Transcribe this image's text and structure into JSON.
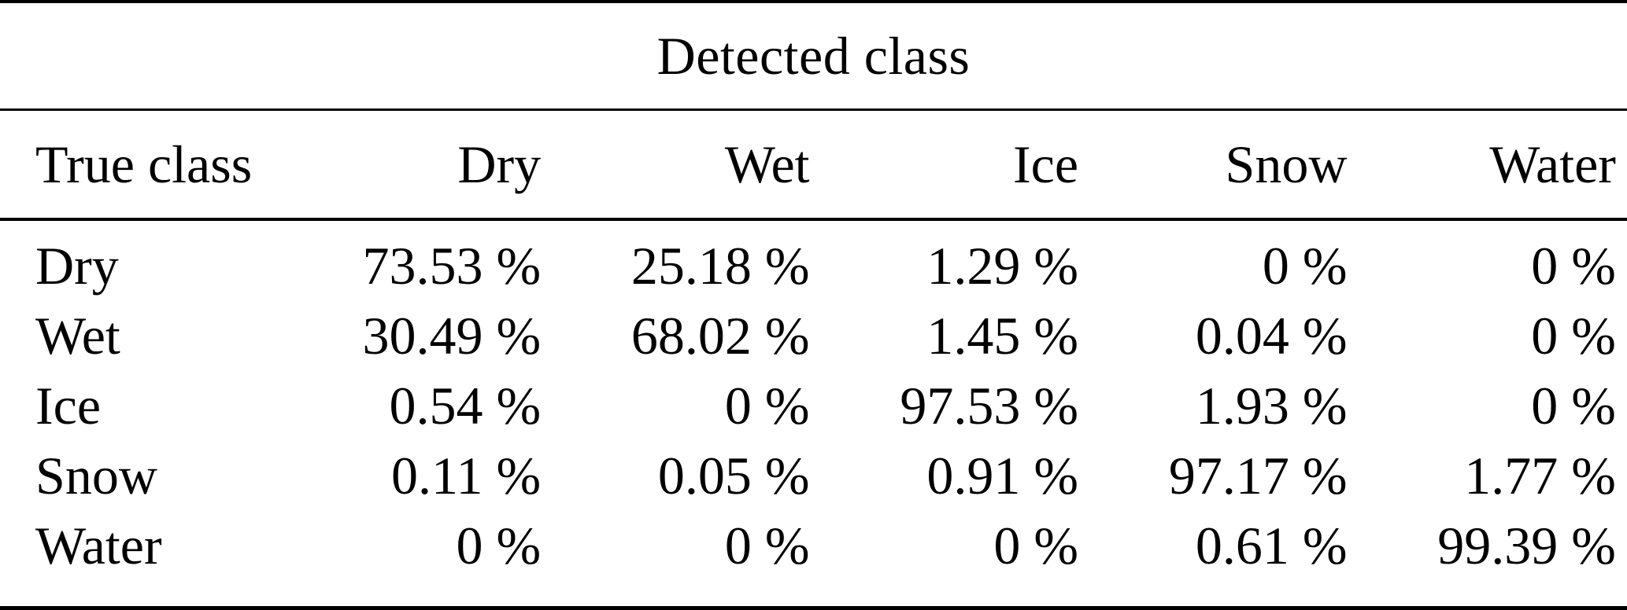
{
  "title": "Detected class",
  "header": {
    "corner": "True class",
    "columns": [
      "Dry",
      "Wet",
      "Ice",
      "Snow",
      "Water"
    ]
  },
  "rows": [
    {
      "label": "Dry",
      "values": [
        "73.53 %",
        "25.18 %",
        "1.29 %",
        "0 %",
        "0 %"
      ]
    },
    {
      "label": "Wet",
      "values": [
        "30.49 %",
        "68.02 %",
        "1.45 %",
        "0.04 %",
        "0 %"
      ]
    },
    {
      "label": "Ice",
      "values": [
        "0.54 %",
        "0 %",
        "97.53 %",
        "1.93 %",
        "0 %"
      ]
    },
    {
      "label": "Snow",
      "values": [
        "0.11 %",
        "0.05 %",
        "0.91 %",
        "97.17 %",
        "1.77 %"
      ]
    },
    {
      "label": "Water",
      "values": [
        "0 %",
        "0 %",
        "0 %",
        "0.61 %",
        "99.39 %"
      ]
    }
  ],
  "chart_data": {
    "type": "table",
    "title": "Detected class",
    "row_axis_label": "True class",
    "categories": [
      "Dry",
      "Wet",
      "Ice",
      "Snow",
      "Water"
    ],
    "series": [
      {
        "name": "Dry",
        "values": [
          73.53,
          25.18,
          1.29,
          0,
          0
        ]
      },
      {
        "name": "Wet",
        "values": [
          30.49,
          68.02,
          1.45,
          0.04,
          0
        ]
      },
      {
        "name": "Ice",
        "values": [
          0.54,
          0,
          97.53,
          1.93,
          0
        ]
      },
      {
        "name": "Snow",
        "values": [
          0.11,
          0.05,
          0.91,
          97.17,
          1.77
        ]
      },
      {
        "name": "Water",
        "values": [
          0,
          0,
          0,
          0.61,
          99.39
        ]
      }
    ],
    "unit": "%"
  },
  "colors": {
    "text": "#000000",
    "background": "#ffffff",
    "rule": "#000000"
  }
}
